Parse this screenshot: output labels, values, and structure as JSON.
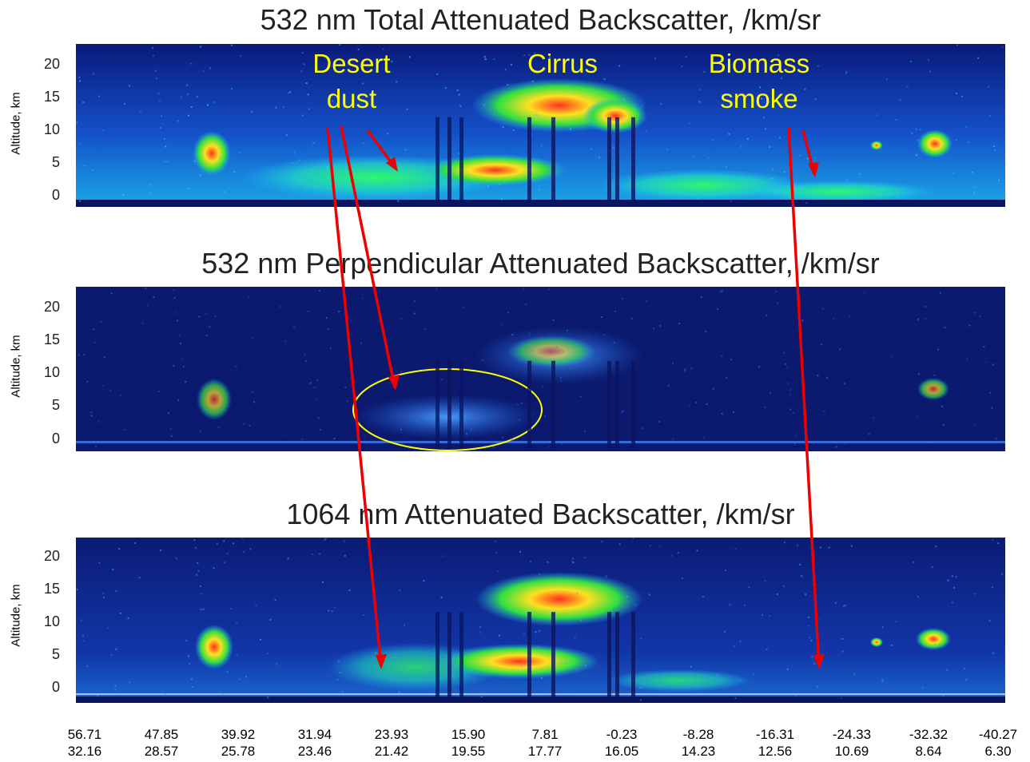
{
  "chart_data": [
    {
      "type": "heatmap",
      "title": "532 nm Total Attenuated Backscatter, /km/sr",
      "ylabel": "Altitude, km",
      "yticks": [
        "20",
        "15",
        "10",
        "5",
        "0"
      ],
      "ylim": [
        0,
        22
      ],
      "features": [
        {
          "label": "Desert dust",
          "altitude_km": [
            0,
            7
          ]
        },
        {
          "label": "Cirrus",
          "altitude_km": [
            8,
            17
          ]
        },
        {
          "label": "Biomass smoke",
          "altitude_km": [
            0,
            3
          ]
        }
      ]
    },
    {
      "type": "heatmap",
      "title": "532 nm Perpendicular Attenuated Backscatter, /km/sr",
      "ylabel": "Altitude, km",
      "yticks": [
        "20",
        "15",
        "10",
        "5",
        "0"
      ],
      "ylim": [
        0,
        22
      ]
    },
    {
      "type": "heatmap",
      "title": "1064 nm Attenuated Backscatter, /km/sr",
      "ylabel": "Altitude, km",
      "yticks": [
        "20",
        "15",
        "10",
        "5",
        "0"
      ],
      "ylim": [
        0,
        22
      ]
    }
  ],
  "x_axis": {
    "latitude": [
      "56.71",
      "47.85",
      "39.92",
      "31.94",
      "23.93",
      "15.90",
      "7.81",
      "-0.23",
      "-8.28",
      "-16.31",
      "-24.33",
      "-32.32",
      "-40.27"
    ],
    "longitude": [
      "32.16",
      "28.57",
      "25.78",
      "23.46",
      "21.42",
      "19.55",
      "17.77",
      "16.05",
      "14.23",
      "12.56",
      "10.69",
      "8.64",
      "6.30"
    ]
  },
  "annotations": {
    "desert_line1": "Desert",
    "desert_line2": "dust",
    "cirrus": "Cirrus",
    "biomass_line1": "Biomass",
    "biomass_line2": "smoke"
  },
  "colors": {
    "background_dark": "#0a1a6e",
    "annotation_text": "#ffff00",
    "arrow": "#ee0000",
    "ellipse": "#ffff00"
  }
}
